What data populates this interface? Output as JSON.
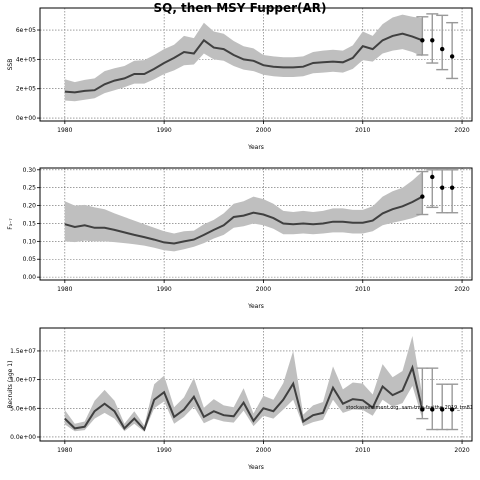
{
  "title": "SQ, then MSY Fupper(AR)",
  "footer_text": "stockassessment.org, sam-tmb-fsaithe-2019_tm81",
  "colors": {
    "band": "#bfbfbf",
    "line": "#404040",
    "frame": "#000000",
    "grid": "#666666",
    "point": "#000000",
    "whisker": "#999999"
  },
  "chart_data": [
    {
      "type": "line",
      "id": "ssb",
      "title": "",
      "xlabel": "Years",
      "ylabel": "SSB",
      "xlim": [
        1977.5,
        2021
      ],
      "ylim": [
        -20000,
        750000
      ],
      "xticks": [
        1980,
        1990,
        2000,
        2010,
        2020
      ],
      "yticks": [
        0,
        200000,
        400000,
        600000
      ],
      "ytick_labels": [
        "0e+00",
        "2e+05",
        "4e+05",
        "6e+05"
      ],
      "grid": true,
      "x": [
        1980,
        1981,
        1982,
        1983,
        1984,
        1985,
        1986,
        1987,
        1988,
        1989,
        1990,
        1991,
        1992,
        1993,
        1994,
        1995,
        1996,
        1997,
        1998,
        1999,
        2000,
        2001,
        2002,
        2003,
        2004,
        2005,
        2006,
        2007,
        2008,
        2009,
        2010,
        2011,
        2012,
        2013,
        2014,
        2015,
        2016
      ],
      "y": [
        180000,
        175000,
        185000,
        190000,
        230000,
        255000,
        270000,
        300000,
        300000,
        335000,
        375000,
        410000,
        450000,
        440000,
        530000,
        480000,
        470000,
        430000,
        400000,
        390000,
        360000,
        350000,
        345000,
        345000,
        350000,
        375000,
        380000,
        385000,
        380000,
        410000,
        490000,
        470000,
        530000,
        560000,
        575000,
        555000,
        530000
      ],
      "lower": [
        120000,
        115000,
        125000,
        135000,
        170000,
        190000,
        210000,
        235000,
        235000,
        265000,
        300000,
        325000,
        360000,
        365000,
        440000,
        400000,
        390000,
        355000,
        330000,
        320000,
        295000,
        285000,
        280000,
        280000,
        285000,
        305000,
        310000,
        315000,
        310000,
        335000,
        395000,
        385000,
        440000,
        460000,
        470000,
        450000,
        420000
      ],
      "upper": [
        265000,
        245000,
        260000,
        270000,
        320000,
        340000,
        355000,
        390000,
        395000,
        430000,
        470000,
        500000,
        560000,
        545000,
        650000,
        590000,
        575000,
        525000,
        490000,
        475000,
        430000,
        420000,
        415000,
        415000,
        420000,
        450000,
        460000,
        465000,
        460000,
        495000,
        590000,
        560000,
        640000,
        685000,
        705000,
        690000,
        680000
      ],
      "forecast": [
        {
          "x": 2016,
          "y": 530000,
          "lower": 430000,
          "upper": 690000
        },
        {
          "x": 2017,
          "y": 530000,
          "lower": 375000,
          "upper": 710000
        },
        {
          "x": 2018,
          "y": 470000,
          "lower": 330000,
          "upper": 700000
        },
        {
          "x": 2019,
          "y": 420000,
          "lower": 270000,
          "upper": 650000
        }
      ]
    },
    {
      "type": "line",
      "id": "fbar",
      "title": "",
      "xlabel": "Years",
      "ylabel": "F₃₋₇",
      "xlim": [
        1977.5,
        2021
      ],
      "ylim": [
        -0.008,
        0.305
      ],
      "xticks": [
        1980,
        1990,
        2000,
        2010,
        2020
      ],
      "yticks": [
        0.0,
        0.05,
        0.1,
        0.15,
        0.2,
        0.25,
        0.3
      ],
      "ytick_labels": [
        "0.00",
        "0.05",
        "0.10",
        "0.15",
        "0.20",
        "0.25",
        "0.30"
      ],
      "grid": true,
      "x": [
        1980,
        1981,
        1982,
        1983,
        1984,
        1985,
        1986,
        1987,
        1988,
        1989,
        1990,
        1991,
        1992,
        1993,
        1994,
        1995,
        1996,
        1997,
        1998,
        1999,
        2000,
        2001,
        2002,
        2003,
        2004,
        2005,
        2006,
        2007,
        2008,
        2009,
        2010,
        2011,
        2012,
        2013,
        2014,
        2015,
        2016
      ],
      "y": [
        0.148,
        0.14,
        0.145,
        0.138,
        0.138,
        0.132,
        0.125,
        0.118,
        0.112,
        0.105,
        0.097,
        0.094,
        0.1,
        0.105,
        0.118,
        0.132,
        0.145,
        0.168,
        0.172,
        0.18,
        0.175,
        0.165,
        0.15,
        0.148,
        0.15,
        0.148,
        0.15,
        0.155,
        0.155,
        0.152,
        0.152,
        0.158,
        0.178,
        0.19,
        0.198,
        0.21,
        0.225
      ],
      "lower": [
        0.1,
        0.098,
        0.102,
        0.1,
        0.1,
        0.098,
        0.095,
        0.092,
        0.088,
        0.082,
        0.075,
        0.072,
        0.078,
        0.085,
        0.095,
        0.108,
        0.118,
        0.138,
        0.142,
        0.15,
        0.145,
        0.135,
        0.12,
        0.12,
        0.122,
        0.12,
        0.122,
        0.125,
        0.125,
        0.122,
        0.122,
        0.128,
        0.145,
        0.152,
        0.158,
        0.165,
        0.175
      ],
      "upper": [
        0.212,
        0.2,
        0.202,
        0.195,
        0.19,
        0.178,
        0.168,
        0.158,
        0.148,
        0.138,
        0.128,
        0.122,
        0.128,
        0.13,
        0.148,
        0.16,
        0.178,
        0.205,
        0.212,
        0.225,
        0.218,
        0.205,
        0.185,
        0.182,
        0.185,
        0.182,
        0.185,
        0.192,
        0.192,
        0.188,
        0.188,
        0.198,
        0.225,
        0.24,
        0.25,
        0.27,
        0.295
      ],
      "forecast": [
        {
          "x": 2016,
          "y": 0.225,
          "lower": 0.175,
          "upper": 0.295
        },
        {
          "x": 2017,
          "y": 0.28,
          "lower": 0.195,
          "upper": 0.3
        },
        {
          "x": 2018,
          "y": 0.25,
          "lower": 0.18,
          "upper": 0.3
        },
        {
          "x": 2019,
          "y": 0.25,
          "lower": 0.18,
          "upper": 0.3
        }
      ]
    },
    {
      "type": "line",
      "id": "recruits",
      "title": "",
      "xlabel": "Years",
      "ylabel": "Recruits (age 1)",
      "xlim": [
        1977.5,
        2021
      ],
      "ylim": [
        -700000,
        19000000
      ],
      "xticks": [
        1980,
        1990,
        2000,
        2010,
        2020
      ],
      "yticks": [
        0,
        5000000,
        10000000,
        15000000
      ],
      "ytick_labels": [
        "0.0e+00",
        "5.0e+06",
        "1.0e+07",
        "1.5e+07"
      ],
      "grid": true,
      "x": [
        1980,
        1981,
        1982,
        1983,
        1984,
        1985,
        1986,
        1987,
        1988,
        1989,
        1990,
        1991,
        1992,
        1993,
        1994,
        1995,
        1996,
        1997,
        1998,
        1999,
        2000,
        2001,
        2002,
        2003,
        2004,
        2005,
        2006,
        2007,
        2008,
        2009,
        2010,
        2011,
        2012,
        2013,
        2014,
        2015,
        2016
      ],
      "y": [
        3200000,
        1500000,
        1800000,
        4500000,
        5800000,
        4500000,
        1500000,
        3200000,
        1300000,
        6500000,
        7800000,
        3500000,
        4800000,
        7000000,
        3500000,
        4500000,
        3800000,
        3600000,
        6000000,
        2800000,
        5000000,
        4500000,
        6500000,
        9300000,
        2700000,
        3800000,
        4200000,
        8600000,
        5800000,
        6600000,
        6400000,
        5100000,
        8800000,
        7300000,
        8100000,
        12100000,
        4800000
      ],
      "lower": [
        2200000,
        1000000,
        1200000,
        3200000,
        4200000,
        3200000,
        1000000,
        2300000,
        900000,
        5000000,
        6200000,
        2300000,
        3500000,
        5300000,
        2400000,
        3200000,
        2700000,
        2500000,
        4600000,
        1900000,
        3700000,
        3200000,
        4800000,
        6500000,
        1900000,
        2600000,
        3000000,
        6500000,
        4200000,
        4800000,
        4700000,
        3700000,
        6500000,
        5300000,
        5900000,
        8900000,
        3200000
      ],
      "upper": [
        4700000,
        2300000,
        2700000,
        6300000,
        8200000,
        6300000,
        2300000,
        4500000,
        2000000,
        9200000,
        10700000,
        5200000,
        6900000,
        10300000,
        5100000,
        6600000,
        5500000,
        5200000,
        8500000,
        4100000,
        7200000,
        6500000,
        9400000,
        15000000,
        3900000,
        5500000,
        6100000,
        12300000,
        8300000,
        9500000,
        9300000,
        7400000,
        12700000,
        10400000,
        11500000,
        17600000,
        7200000
      ],
      "forecast": [
        {
          "x": 2016,
          "y": 4800000,
          "lower": 3200000,
          "upper": 12000000
        },
        {
          "x": 2017,
          "y": 4800000,
          "lower": 1300000,
          "upper": 12000000
        },
        {
          "x": 2018,
          "y": 4800000,
          "lower": 1300000,
          "upper": 9200000
        },
        {
          "x": 2019,
          "y": 4800000,
          "lower": 1300000,
          "upper": 9200000
        }
      ]
    }
  ]
}
